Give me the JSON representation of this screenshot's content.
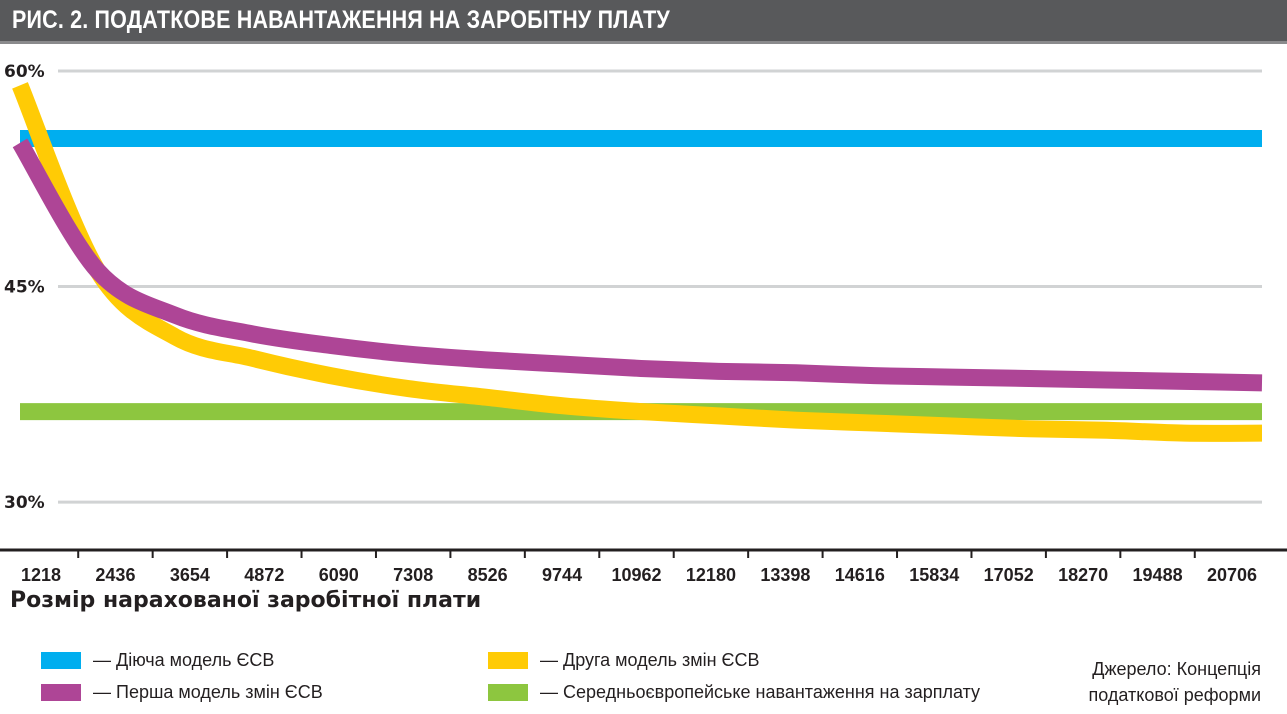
{
  "title": "РИС. 2. ПОДАТКОВЕ НАВАНТАЖЕННЯ НА ЗАРОБІТНУ ПЛАТУ",
  "chart_data": {
    "type": "line",
    "title": "РИС. 2. ПОДАТКОВЕ НАВАНТАЖЕННЯ НА ЗАРОБІТНУ ПЛАТУ",
    "xlabel": "Розмір нарахованої заробітної плати",
    "ylabel": "",
    "x": [
      "1218",
      "2436",
      "3654",
      "4872",
      "6090",
      "7308",
      "8526",
      "9744",
      "10962",
      "12180",
      "13398",
      "14616",
      "15834",
      "17052",
      "18270",
      "19488",
      "20706"
    ],
    "yticks": [
      "60%",
      "45%",
      "30%"
    ],
    "ytick_values": [
      60,
      45,
      30
    ],
    "ylim": [
      27,
      61
    ],
    "grid": true,
    "legend_position": "bottom",
    "series": [
      {
        "name": "— Діюча модель ЄСВ",
        "color": "#00aeef",
        "values": [
          55.3,
          55.3,
          55.3,
          55.3,
          55.3,
          55.3,
          55.3,
          55.3,
          55.3,
          55.3,
          55.3,
          55.2,
          55.2,
          55.3,
          55.3,
          55.3,
          55.3
        ]
      },
      {
        "name": "— Перша модель змін ЄСВ",
        "color": "#ae4596",
        "values": [
          55.0,
          46.1,
          43.0,
          41.7,
          40.9,
          40.3,
          39.9,
          39.6,
          39.3,
          39.1,
          39.0,
          38.8,
          38.7,
          38.6,
          38.5,
          38.4,
          38.3
        ]
      },
      {
        "name": "— Друга модель змін ЄСВ",
        "color": "#ffcb05",
        "values": [
          59.0,
          46.1,
          41.5,
          40.0,
          38.8,
          37.9,
          37.3,
          36.7,
          36.3,
          36.0,
          35.7,
          35.5,
          35.3,
          35.1,
          35.0,
          34.8,
          34.8
        ]
      },
      {
        "name": "— Середньоєвропейське навантаження на зарплату",
        "color": "#8dc63f",
        "values": [
          36.3,
          36.3,
          36.3,
          36.3,
          36.3,
          36.3,
          36.3,
          36.3,
          36.3,
          36.3,
          36.3,
          36.3,
          36.3,
          36.3,
          36.3,
          36.3,
          36.3
        ]
      }
    ]
  },
  "source": {
    "line1": "Джерело: Концепція",
    "line2": "податкової реформи"
  },
  "colors": {
    "titlebar": "#58595b",
    "grid": "#d1d3d4",
    "axis": "#231f20"
  }
}
